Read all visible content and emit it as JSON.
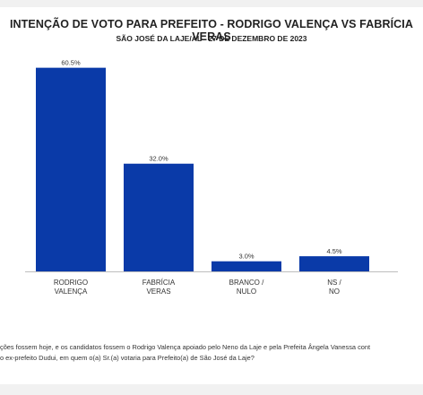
{
  "header": {
    "title": "INTENÇÃO DE VOTO PARA PREFEITO - RODRIGO VALENÇA VS FABRÍCIA VERAS",
    "subtitle": "SÃO JOSÉ DA LAJE/AL - 27 DE DEZEMBRO DE 2023"
  },
  "question": {
    "line1": "ções fossem hoje, e os candidatos fossem o Rodrigo Valença apoiado pelo Neno da Laje e pela Prefeita Ângela Vanessa cont",
    "line2": "o ex-prefeito Dudui, em quem o(a) Sr.(a) votaria para Prefeito(a) de São José da Laje?"
  },
  "chart_data": {
    "type": "bar",
    "title": "INTENÇÃO DE VOTO PARA PREFEITO - RODRIGO VALENÇA VS FABRÍCIA VERAS",
    "subtitle": "SÃO JOSÉ DA LAJE/AL - 27 DE DEZEMBRO DE 2023",
    "categories": [
      [
        "RODRIGO",
        "VALENÇA"
      ],
      [
        "FABRÍCIA",
        "VERAS"
      ],
      [
        "BRANCO /",
        "NULO"
      ],
      [
        "NS /",
        "NO"
      ]
    ],
    "values": [
      60.5,
      32.0,
      3.0,
      4.5
    ],
    "value_labels": [
      "60.5%",
      "32.0%",
      "3.0%",
      "4.5%"
    ],
    "ylim": [
      0,
      62
    ],
    "grid": false,
    "legend": "none",
    "bar_color": "#0a3aa8"
  }
}
